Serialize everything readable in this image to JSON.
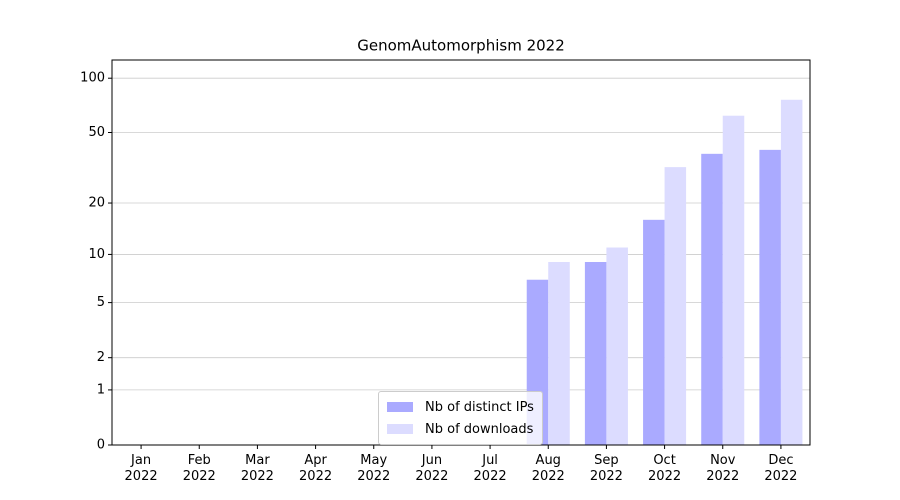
{
  "chart_data": {
    "type": "bar",
    "title": "GenomAutomorphism 2022",
    "categories": [
      "Jan\n2022",
      "Feb\n2022",
      "Mar\n2022",
      "Apr\n2022",
      "May\n2022",
      "Jun\n2022",
      "Jul\n2022",
      "Aug\n2022",
      "Sep\n2022",
      "Oct\n2022",
      "Nov\n2022",
      "Dec\n2022"
    ],
    "series": [
      {
        "name": "Nb of distinct IPs",
        "color": "#aaaaff",
        "values": [
          0,
          0,
          0,
          0,
          0,
          0,
          0,
          7,
          9,
          16,
          38,
          40
        ]
      },
      {
        "name": "Nb of downloads",
        "color": "#dcdcff",
        "values": [
          0,
          0,
          0,
          0,
          0,
          0,
          0,
          9,
          11,
          32,
          62,
          76
        ]
      }
    ],
    "yscale": "log1p",
    "ylim": [
      0,
      126
    ],
    "yticks": [
      0,
      1,
      2,
      5,
      10,
      20,
      50,
      100
    ],
    "grid": true,
    "legend": "lower center"
  }
}
